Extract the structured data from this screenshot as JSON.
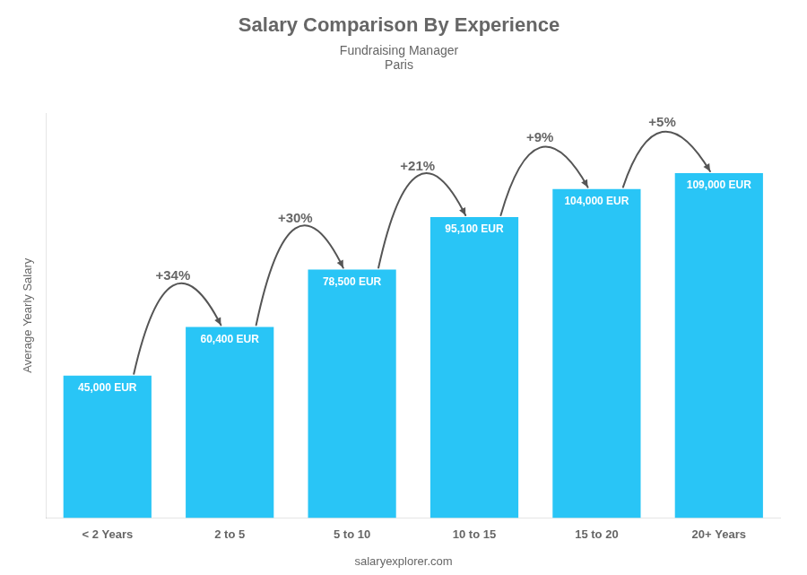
{
  "chart_data": {
    "type": "bar",
    "title": "Salary Comparison By Experience",
    "subtitle": [
      "Fundraising Manager",
      "Paris"
    ],
    "categories": [
      "< 2 Years",
      "2 to 5",
      "5 to 10",
      "10 to 15",
      "15 to 20",
      "20+ Years"
    ],
    "values": [
      45000,
      60400,
      78500,
      95100,
      104000,
      109000
    ],
    "value_labels": [
      "45,000 EUR",
      "60,400 EUR",
      "78,500 EUR",
      "95,100 EUR",
      "104,000 EUR",
      "109,000 EUR"
    ],
    "data_labels": true,
    "color": "#29C5F6",
    "ylabel": "Average Yearly Salary",
    "ylim": [
      0,
      128000
    ],
    "annotations": [
      "+34%",
      "+30%",
      "+21%",
      "+9%",
      "+5%"
    ],
    "source": "salaryexplorer.com",
    "grid": false,
    "tick_labels": "x"
  }
}
